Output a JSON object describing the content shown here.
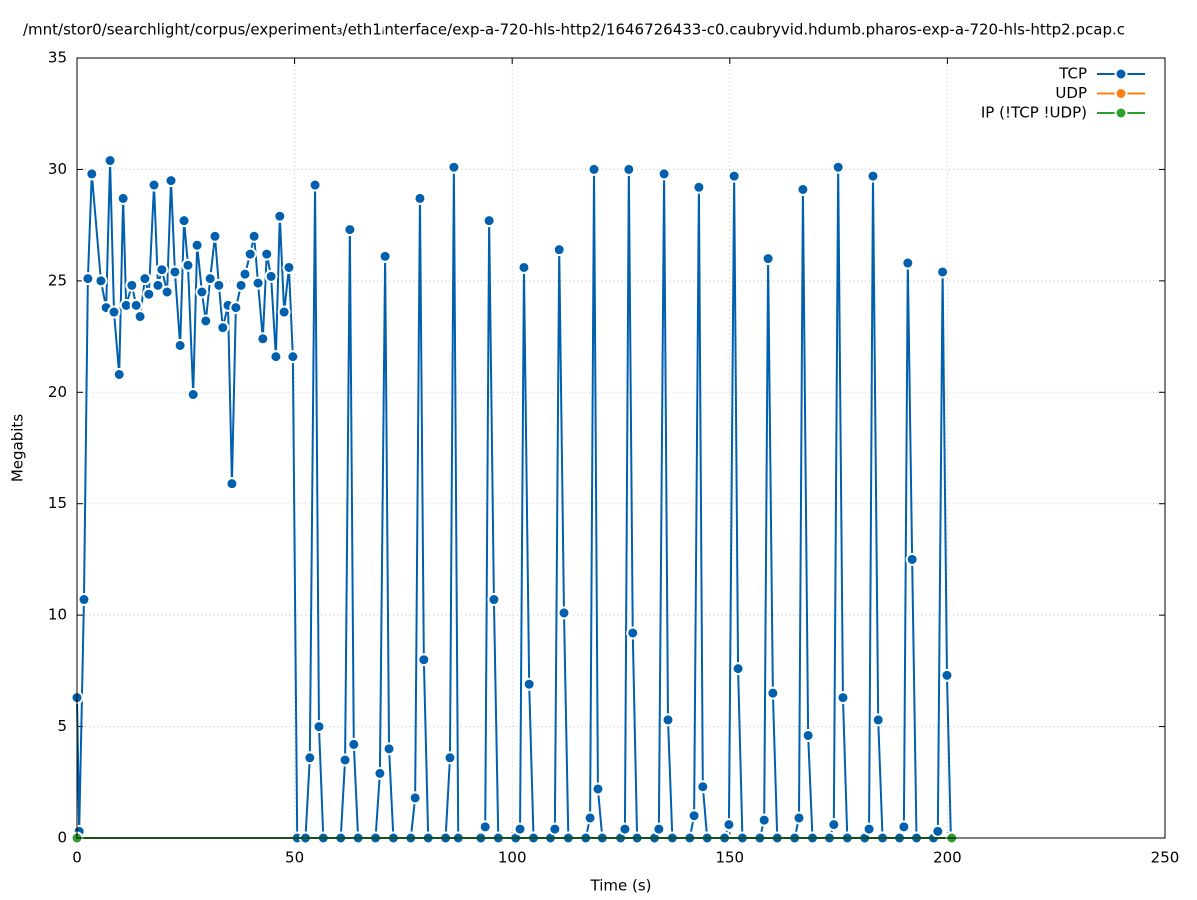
{
  "chart_data": {
    "type": "line",
    "title": "/mnt/stor0/searchlight/corpus/experiment₃/eth1ᵢnterface/exp-a-720-hls-http2/1646726433-c0.caubryvid.hdumb.pharos-exp-a-720-hls-http2.pcap.c",
    "x_label": "Time (s)",
    "y_label": "Megabits",
    "xlim": [
      0,
      250
    ],
    "xticks": [
      0,
      50,
      100,
      150,
      200,
      250
    ],
    "ylim": [
      0,
      35
    ],
    "yticks": [
      0,
      5,
      10,
      15,
      20,
      25,
      30,
      35
    ],
    "grid": true,
    "legend": "top-right",
    "series": [
      {
        "name": "TCP",
        "color": "#0060ad",
        "x": [
          0,
          0.5,
          1.6,
          2.5,
          3.4,
          5.5,
          6.7,
          7.6,
          8.5,
          9.7,
          10.6,
          11.3,
          12.6,
          13.6,
          14.5,
          15.6,
          16.5,
          17.7,
          18.6,
          19.5,
          20.7,
          21.6,
          22.5,
          23.7,
          24.6,
          25.5,
          26.7,
          27.6,
          28.7,
          29.6,
          30.6,
          31.7,
          32.6,
          33.5,
          34.7,
          35.6,
          36.5,
          37.7,
          38.6,
          39.8,
          40.7,
          41.6,
          42.7,
          43.6,
          44.6,
          45.7,
          46.6,
          47.6,
          48.7,
          49.6,
          50.6,
          52.5,
          53.5,
          54.7,
          55.6,
          56.6,
          60.6,
          61.6,
          62.7,
          63.6,
          64.6,
          68.6,
          69.6,
          70.8,
          71.7,
          72.7,
          76.7,
          77.7,
          78.8,
          79.7,
          80.7,
          84.7,
          85.7,
          86.6,
          87.6,
          92.8,
          93.8,
          94.7,
          95.8,
          96.8,
          100.8,
          101.8,
          102.7,
          103.9,
          104.9,
          108.8,
          109.8,
          110.8,
          111.9,
          112.9,
          116.9,
          117.9,
          118.8,
          119.7,
          120.7,
          124.9,
          125.9,
          126.8,
          127.7,
          128.7,
          132.7,
          133.7,
          134.9,
          135.8,
          136.8,
          140.8,
          141.8,
          142.9,
          143.8,
          144.8,
          148.8,
          149.8,
          151.0,
          151.9,
          152.9,
          156.9,
          157.9,
          158.8,
          159.9,
          160.9,
          164.9,
          165.9,
          166.8,
          168.0,
          169.0,
          172.9,
          173.9,
          174.9,
          176.0,
          177.0,
          181.0,
          182.0,
          182.9,
          184.1,
          185.1,
          189.0,
          190.0,
          190.9,
          191.9,
          192.9,
          196.8,
          197.8,
          198.9,
          199.9,
          200.8
        ],
        "values": [
          6.3,
          0.3,
          10.7,
          25.1,
          29.8,
          25.0,
          23.8,
          30.4,
          23.6,
          20.8,
          28.7,
          23.9,
          24.8,
          23.9,
          23.4,
          25.1,
          24.4,
          29.3,
          24.8,
          25.5,
          24.5,
          29.5,
          25.4,
          22.1,
          27.7,
          25.7,
          19.9,
          26.6,
          24.5,
          23.2,
          25.1,
          27.0,
          24.8,
          22.9,
          23.9,
          15.9,
          23.8,
          24.8,
          25.3,
          26.2,
          27.0,
          24.9,
          22.4,
          26.2,
          25.2,
          21.6,
          27.9,
          23.6,
          25.6,
          21.6,
          0,
          0,
          3.6,
          29.3,
          5.0,
          0,
          0,
          3.5,
          27.3,
          4.2,
          0,
          0,
          2.9,
          26.1,
          4.0,
          0,
          0,
          1.8,
          28.7,
          8.0,
          0,
          0,
          3.6,
          30.1,
          0,
          0,
          0.5,
          27.7,
          10.7,
          0,
          0,
          0.4,
          25.6,
          6.9,
          0,
          0,
          0.4,
          26.4,
          10.1,
          0,
          0,
          0.9,
          30.0,
          2.2,
          0,
          0,
          0.4,
          30.0,
          9.2,
          0,
          0,
          0.4,
          29.8,
          5.3,
          0,
          0,
          1.0,
          29.2,
          2.3,
          0,
          0,
          0.6,
          29.7,
          7.6,
          0,
          0,
          0.8,
          26.0,
          6.5,
          0,
          0,
          0.9,
          29.1,
          4.6,
          0,
          0,
          0.6,
          30.1,
          6.3,
          0,
          0,
          0.4,
          29.7,
          5.3,
          0,
          0,
          0.5,
          25.8,
          12.5,
          0,
          0,
          0.3,
          25.4,
          7.3,
          0
        ]
      },
      {
        "name": "UDP",
        "color": "#ff7f0e",
        "x": [],
        "values": []
      },
      {
        "name": "IP (!TCP  !UDP)",
        "color": "#2ca02c",
        "x": [
          0,
          201
        ],
        "values": [
          0,
          0
        ]
      }
    ]
  }
}
